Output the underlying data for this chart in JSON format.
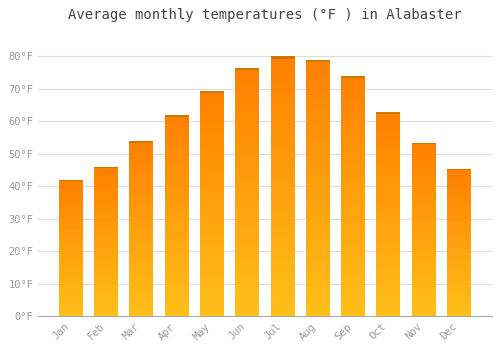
{
  "title": "Average monthly temperatures (°F ) in Alabaster",
  "months": [
    "Jan",
    "Feb",
    "Mar",
    "Apr",
    "May",
    "Jun",
    "Jul",
    "Aug",
    "Sep",
    "Oct",
    "Nov",
    "Dec"
  ],
  "values": [
    42,
    46,
    54,
    62,
    69.5,
    76.5,
    80,
    79,
    74,
    63,
    53.5,
    45.5
  ],
  "bar_color": "#FFA500",
  "bar_color_light": "#FFD040",
  "ylim": [
    0,
    88
  ],
  "yticks": [
    0,
    10,
    20,
    30,
    40,
    50,
    60,
    70,
    80
  ],
  "ytick_labels": [
    "0°F",
    "10°F",
    "20°F",
    "30°F",
    "40°F",
    "50°F",
    "60°F",
    "70°F",
    "80°F"
  ],
  "background_color": "#ffffff",
  "grid_color": "#dddddd",
  "title_fontsize": 10,
  "tick_fontsize": 7.5,
  "tick_color": "#999999"
}
